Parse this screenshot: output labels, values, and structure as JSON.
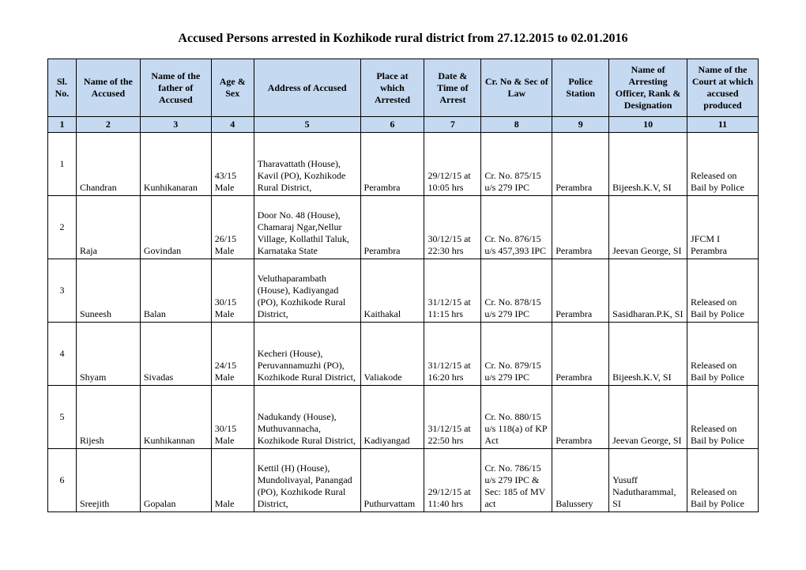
{
  "title": "Accused Persons arrested in Kozhikode rural district from  27.12.2015 to 02.01.2016",
  "columns": [
    "Sl. No.",
    "Name of the Accused",
    "Name of the father of Accused",
    "Age & Sex",
    "Address of Accused",
    "Place at which Arrested",
    "Date & Time of Arrest",
    "Cr. No & Sec of Law",
    "Police Station",
    "Name of Arresting Officer, Rank & Designation",
    "Name of the Court at which accused produced"
  ],
  "colnums": [
    "1",
    "2",
    "3",
    "4",
    "5",
    "6",
    "7",
    "8",
    "9",
    "10",
    "11"
  ],
  "colwidths": [
    "4%",
    "9%",
    "10%",
    "6%",
    "15%",
    "9%",
    "8%",
    "10%",
    "8%",
    "11%",
    "10%"
  ],
  "header_bg": "#c5d9f1",
  "rows": [
    {
      "no": "1",
      "accused": "Chandran",
      "father": "Kunhikanaran",
      "age_sex": "43/15 Male",
      "address": "Tharavattath (House), Kavil (PO), Kozhikode Rural District,",
      "place": "Perambra",
      "datetime": "29/12/15 at 10:05 hrs",
      "crno": "Cr. No. 875/15 u/s 279 IPC",
      "station": "Perambra",
      "officer": "Bijeesh.K.V,  SI",
      "court": "Released on Bail by Police"
    },
    {
      "no": "2",
      "accused": "Raja",
      "father": "Govindan",
      "age_sex": "26/15 Male",
      "address": "Door No. 48 (House), Chamaraj Ngar,Nellur Village, Kollathil Taluk, Karnataka State",
      "place": "Perambra",
      "datetime": "30/12/15 at 22:30 hrs",
      "crno": "Cr. No. 876/15 u/s 457,393 IPC",
      "station": "Perambra",
      "officer": "Jeevan George, SI",
      "court": "JFCM I Perambra"
    },
    {
      "no": "3",
      "accused": "Suneesh",
      "father": "Balan",
      "age_sex": "30/15 Male",
      "address": "Veluthaparambath (House), Kadiyangad (PO), Kozhikode Rural District,",
      "place": "Kaithakal",
      "datetime": "31/12/15 at 11:15 hrs",
      "crno": "Cr. No. 878/15 u/s 279 IPC",
      "station": "Perambra",
      "officer": "Sasidharan.P.K, SI",
      "court": "Released on Bail by Police"
    },
    {
      "no": "4",
      "accused": "Shyam",
      "father": "Sivadas",
      "age_sex": "24/15 Male",
      "address": "Kecheri (House), Peruvannamuzhi (PO), Kozhikode Rural District,",
      "place": "Valiakode",
      "datetime": "31/12/15 at 16:20 hrs",
      "crno": "Cr. No. 879/15 u/s 279 IPC",
      "station": "Perambra",
      "officer": "Bijeesh.K.V,  SI",
      "court": "Released on Bail by Police"
    },
    {
      "no": "5",
      "accused": "Rijesh",
      "father": "Kunhikannan",
      "age_sex": "30/15 Male",
      "address": "Nadukandy (House), Muthuvannacha, Kozhikode Rural District,",
      "place": "Kadiyangad",
      "datetime": "31/12/15 at 22:50 hrs",
      "crno": "Cr. No. 880/15 u/s 118(a) of KP Act",
      "station": "Perambra",
      "officer": "Jeevan George, SI",
      "court": "Released on Bail by Police"
    },
    {
      "no": "6",
      "accused": "Sreejith",
      "father": "Gopalan",
      "age_sex": "Male",
      "address": "Kettil (H) (House), Mundolivayal, Panangad (PO), Kozhikode Rural District,",
      "place": "Puthurvattam",
      "datetime": "29/12/15 at 11:40 hrs",
      "crno": "Cr. No. 786/15 u/s 279 IPC & Sec: 185 of MV act",
      "station": "Balussery",
      "officer": "Yusuff Nadutharammal, SI",
      "court": "Released on Bail by Police"
    }
  ]
}
